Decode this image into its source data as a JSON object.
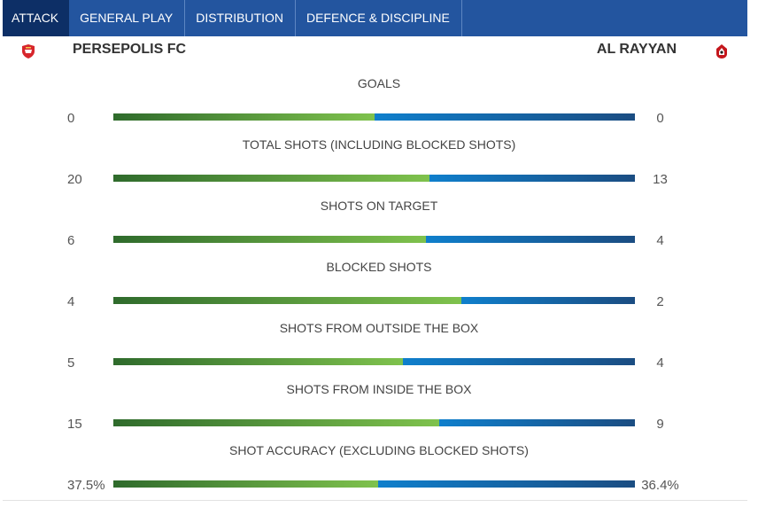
{
  "tabs": [
    {
      "label": "ATTACK",
      "active": true
    },
    {
      "label": "GENERAL PLAY",
      "active": false
    },
    {
      "label": "DISTRIBUTION",
      "active": false
    },
    {
      "label": "DEFENCE & DISCIPLINE",
      "active": false
    }
  ],
  "teams": {
    "home": {
      "name": "PERSEPOLIS FC",
      "crest_icon": "persepolis-crest-icon",
      "crest_color": "#d7262c"
    },
    "away": {
      "name": "AL RAYYAN",
      "crest_icon": "al-rayyan-crest-icon",
      "crest_color": "#c4161c"
    }
  },
  "colors": {
    "tab_bar": "#23559f",
    "tab_active": "#0d2f66",
    "home_bar": "#5ca544",
    "away_bar": "#0f7fcc"
  },
  "stats": [
    {
      "label": "GOALS",
      "home": "0",
      "away": "0",
      "home_share": 0.5
    },
    {
      "label": "TOTAL SHOTS (INCLUDING BLOCKED SHOTS)",
      "home": "20",
      "away": "13",
      "home_share": 0.606
    },
    {
      "label": "SHOTS ON TARGET",
      "home": "6",
      "away": "4",
      "home_share": 0.6
    },
    {
      "label": "BLOCKED SHOTS",
      "home": "4",
      "away": "2",
      "home_share": 0.667
    },
    {
      "label": "SHOTS FROM OUTSIDE THE BOX",
      "home": "5",
      "away": "4",
      "home_share": 0.556
    },
    {
      "label": "SHOTS FROM INSIDE THE BOX",
      "home": "15",
      "away": "9",
      "home_share": 0.625
    },
    {
      "label": "SHOT ACCURACY (EXCLUDING BLOCKED SHOTS)",
      "home": "37.5%",
      "away": "36.4%",
      "home_share": 0.508
    }
  ]
}
